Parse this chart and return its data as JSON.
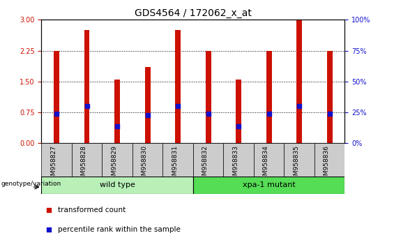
{
  "title": "GDS4564 / 172062_x_at",
  "samples": [
    "GSM958827",
    "GSM958828",
    "GSM958829",
    "GSM958830",
    "GSM958831",
    "GSM958832",
    "GSM958833",
    "GSM958834",
    "GSM958835",
    "GSM958836"
  ],
  "transformed_counts": [
    2.25,
    2.75,
    1.55,
    1.85,
    2.75,
    2.25,
    1.55,
    2.25,
    3.0,
    2.25
  ],
  "percentile_ranks_left_scale": [
    0.72,
    0.9,
    0.42,
    0.68,
    0.9,
    0.72,
    0.42,
    0.72,
    0.9,
    0.72
  ],
  "groups": [
    {
      "label": "wild type",
      "start": 0,
      "end": 5,
      "color": "#b8f0b8"
    },
    {
      "label": "xpa-1 mutant",
      "start": 5,
      "end": 10,
      "color": "#55dd55"
    }
  ],
  "ylim_left": [
    0,
    3
  ],
  "ylim_right": [
    0,
    100
  ],
  "yticks_left": [
    0,
    0.75,
    1.5,
    2.25,
    3
  ],
  "yticks_right": [
    0,
    25,
    50,
    75,
    100
  ],
  "bar_color": "#cc1100",
  "dot_color": "#1111cc",
  "bar_width": 0.18,
  "dot_size": 22,
  "grid_color": "black",
  "legend_items": [
    "transformed count",
    "percentile rank within the sample"
  ],
  "legend_colors": [
    "#cc1100",
    "#1111cc"
  ],
  "genotype_label": "genotype/variation",
  "title_fontsize": 10,
  "tick_fontsize": 7,
  "xtick_bg_color": "#cccccc"
}
